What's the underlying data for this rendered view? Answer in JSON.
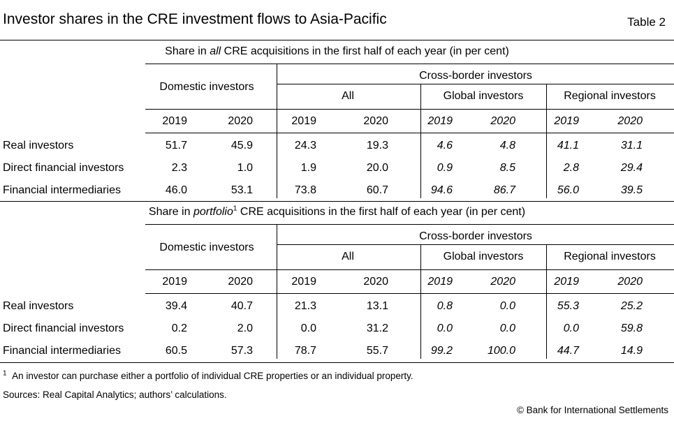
{
  "title": "Investor shares in the CRE investment flows to Asia-Pacific",
  "table_tag": "Table 2",
  "panels": [
    {
      "caption": {
        "pre": "Share in ",
        "em": "all",
        "sup": "",
        "post": " CRE acquisitions in the first half of each year (in per cent)"
      },
      "group_domestic": "Domestic investors",
      "group_crossborder": "Cross-border investors",
      "sub_all": "All",
      "sub_global": "Global investors",
      "sub_regional": "Regional investors",
      "years": [
        "2019",
        "2020",
        "2019",
        "2020",
        "2019",
        "2020",
        "2019",
        "2020"
      ],
      "rows": [
        {
          "label": "Real investors",
          "values": [
            "51.7",
            "45.9",
            "24.3",
            "19.3",
            "4.6",
            "4.8",
            "41.1",
            "31.1"
          ]
        },
        {
          "label": "Direct financial investors",
          "values": [
            "2.3",
            "1.0",
            "1.9",
            "20.0",
            "0.9",
            "8.5",
            "2.8",
            "29.4"
          ]
        },
        {
          "label": "Financial intermediaries",
          "values": [
            "46.0",
            "53.1",
            "73.8",
            "60.7",
            "94.6",
            "86.7",
            "56.0",
            "39.5"
          ]
        }
      ]
    },
    {
      "caption": {
        "pre": "Share in ",
        "em": "portfolio",
        "sup": "1",
        "post": " CRE acquisitions in the first half of each year (in per cent)"
      },
      "group_domestic": "Domestic investors",
      "group_crossborder": "Cross-border investors",
      "sub_all": "All",
      "sub_global": "Global investors",
      "sub_regional": "Regional investors",
      "years": [
        "2019",
        "2020",
        "2019",
        "2020",
        "2019",
        "2020",
        "2019",
        "2020"
      ],
      "rows": [
        {
          "label": "Real investors",
          "values": [
            "39.4",
            "40.7",
            "21.3",
            "13.1",
            "0.8",
            "0.0",
            "55.3",
            "25.2"
          ]
        },
        {
          "label": "Direct financial investors",
          "values": [
            "0.2",
            "2.0",
            "0.0",
            "31.2",
            "0.0",
            "0.0",
            "0.0",
            "59.8"
          ]
        },
        {
          "label": "Financial intermediaries",
          "values": [
            "60.5",
            "57.3",
            "78.7",
            "55.7",
            "99.2",
            "100.0",
            "44.7",
            "14.9"
          ]
        }
      ]
    }
  ],
  "footnote": {
    "marker": "1",
    "text": "An investor can purchase either a portfolio of individual CRE properties or an individual property."
  },
  "sources": "Sources: Real Capital Analytics; authors’ calculations.",
  "copyright": "© Bank for International Settlements"
}
